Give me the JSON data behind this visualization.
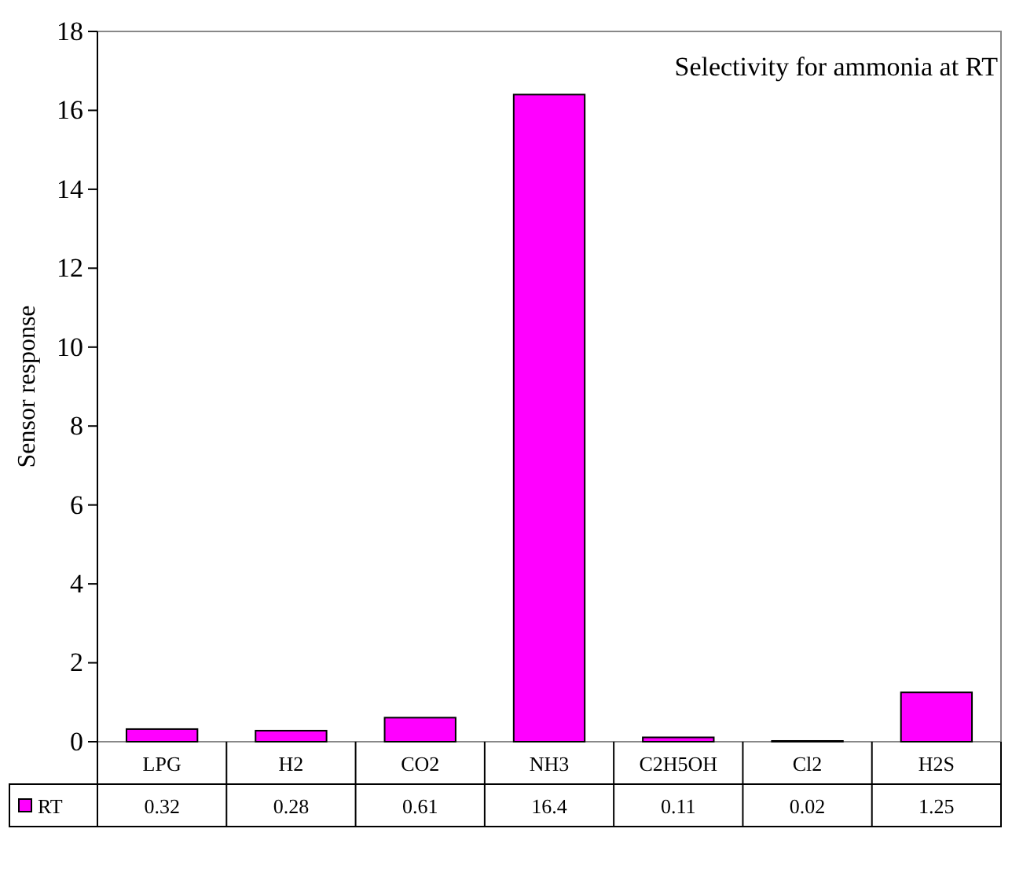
{
  "chart_data": {
    "type": "bar",
    "title": "Selectivity for ammonia at RT",
    "ylabel": "Sensor response",
    "categories": [
      "LPG",
      "H2",
      "CO2",
      "NH3",
      "C2H5OH",
      "Cl2",
      "H2S"
    ],
    "series": [
      {
        "name": "RT",
        "color": "#ff00ff",
        "values": [
          0.32,
          0.28,
          0.61,
          16.4,
          0.11,
          0.02,
          1.25
        ]
      }
    ],
    "ylim": [
      0,
      18
    ],
    "yticks": [
      0,
      2,
      4,
      6,
      8,
      10,
      12,
      14,
      16,
      18
    ],
    "grid": false,
    "legend": "bottom",
    "data_labels": true
  }
}
